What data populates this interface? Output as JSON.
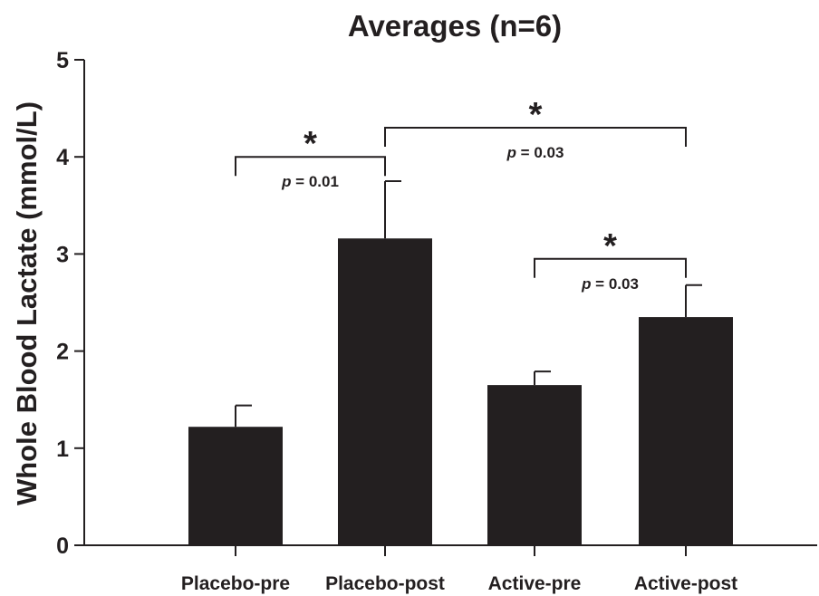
{
  "chart_data": {
    "type": "bar",
    "title": "Averages (n=6)",
    "ylabel": "Whole Blood Lactate (mmol/L)",
    "xlabel": "",
    "ylim": [
      0,
      5
    ],
    "yticks": [
      "0",
      "1",
      "2",
      "3",
      "4",
      "5"
    ],
    "categories": [
      "Placebo-pre",
      "Placebo-post",
      "Active-pre",
      "Active-post"
    ],
    "values": [
      1.22,
      3.16,
      1.65,
      2.35
    ],
    "errors": [
      0.22,
      0.59,
      0.14,
      0.33
    ],
    "bar_color": "#231f20",
    "grid": false,
    "annotations": [
      {
        "from": 0,
        "to": 1,
        "y": 4.0,
        "star": "*",
        "p_letter": "p",
        "p_value": " = 0.01"
      },
      {
        "from": 1,
        "to": 3,
        "y": 4.3,
        "star": "*",
        "p_letter": "p",
        "p_value": " = 0.03"
      },
      {
        "from": 2,
        "to": 3,
        "y": 2.95,
        "star": "*",
        "p_letter": "p",
        "p_value": " = 0.03"
      }
    ]
  }
}
